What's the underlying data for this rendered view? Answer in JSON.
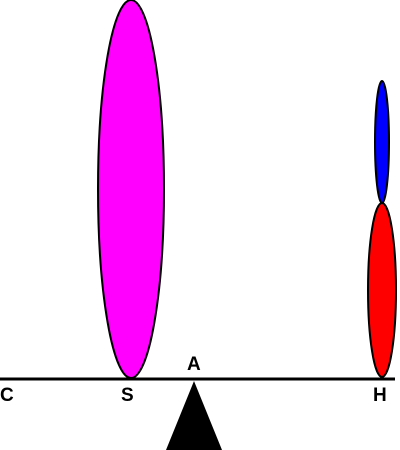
{
  "labels": {
    "left_end": "C",
    "support": "A",
    "left_mass": "S",
    "right_end": "H"
  },
  "colors": {
    "beam": "#000000",
    "fulcrum": "#000000",
    "left_mass": "#ff00ff",
    "right_mass_lower": "#ff0000",
    "right_mass_upper": "#0000ff",
    "outline": "#000000"
  }
}
